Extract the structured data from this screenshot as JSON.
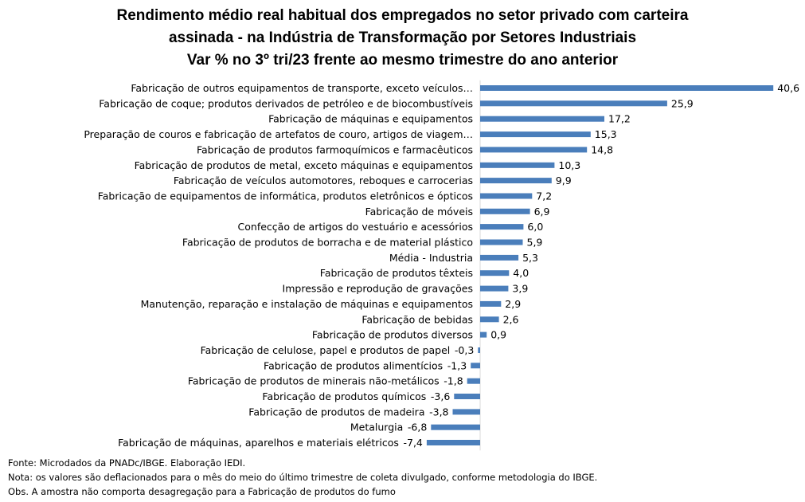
{
  "chart_data": {
    "type": "bar",
    "orientation": "horizontal",
    "title": [
      "Rendimento médio real habitual dos empregados no setor privado com carteira",
      "assinada - na Indústria de Transformação por Setores Industriais",
      "Var % no 3º tri/23 frente ao mesmo trimestre do ano anterior"
    ],
    "categories": [
      "Fabricação de outros equipamentos de transporte, exceto veículos…",
      "Fabricação de coque; produtos derivados de petróleo e de biocombustíveis",
      "Fabricação de máquinas e equipamentos",
      "Preparação de couros e fabricação de artefatos de couro, artigos de viagem…",
      "Fabricação de produtos farmoquímicos e farmacêuticos",
      "Fabricação de produtos de metal, exceto máquinas e equipamentos",
      "Fabricação de veículos automotores, reboques e carrocerias",
      "Fabricação de equipamentos de informática, produtos eletrônicos e ópticos",
      "Fabricação de móveis",
      "Confecção de artigos do vestuário e acessórios",
      "Fabricação de produtos de borracha e de material plástico",
      "Média - Industria",
      "Fabricação de produtos têxteis",
      "Impressão e reprodução de gravações",
      "Manutenção, reparação e instalação de máquinas e equipamentos",
      "Fabricação de bebidas",
      "Fabricação de produtos diversos",
      "Fabricação de celulose, papel e produtos de papel",
      "Fabricação de produtos alimentícios",
      "Fabricação de produtos de minerais não-metálicos",
      "Fabricação de produtos químicos",
      "Fabricação de produtos de madeira",
      "Metalurgia",
      "Fabricação de máquinas, aparelhos e materiais elétricos"
    ],
    "values": [
      40.6,
      25.9,
      17.2,
      15.3,
      14.8,
      10.3,
      9.9,
      7.2,
      6.9,
      6.0,
      5.9,
      5.3,
      4.0,
      3.9,
      2.9,
      2.6,
      0.9,
      -0.3,
      -1.3,
      -1.8,
      -3.6,
      -3.8,
      -6.8,
      -7.4
    ],
    "value_labels": [
      "40,6",
      "25,9",
      "17,2",
      "15,3",
      "14,8",
      "10,3",
      "9,9",
      "7,2",
      "6,9",
      "6,0",
      "5,9",
      "5,3",
      "4,0",
      "3,9",
      "2,9",
      "2,6",
      "0,9",
      "-0,3",
      "-1,3",
      "-1,8",
      "-3,6",
      "-3,8",
      "-6,8",
      "-7,4"
    ],
    "bar_color": "#4a7ebb",
    "grid": false,
    "legend": false
  },
  "notes": [
    "Fonte: Microdados da PNADc/IBGE. Elaboração IEDI.",
    "Nota: os valores são deflacionados para o mês do meio do último trimestre de coleta divulgado, conforme metodologia do IBGE.",
    "Obs. A amostra não comporta desagregação para a Fabricação de produtos do fumo"
  ]
}
